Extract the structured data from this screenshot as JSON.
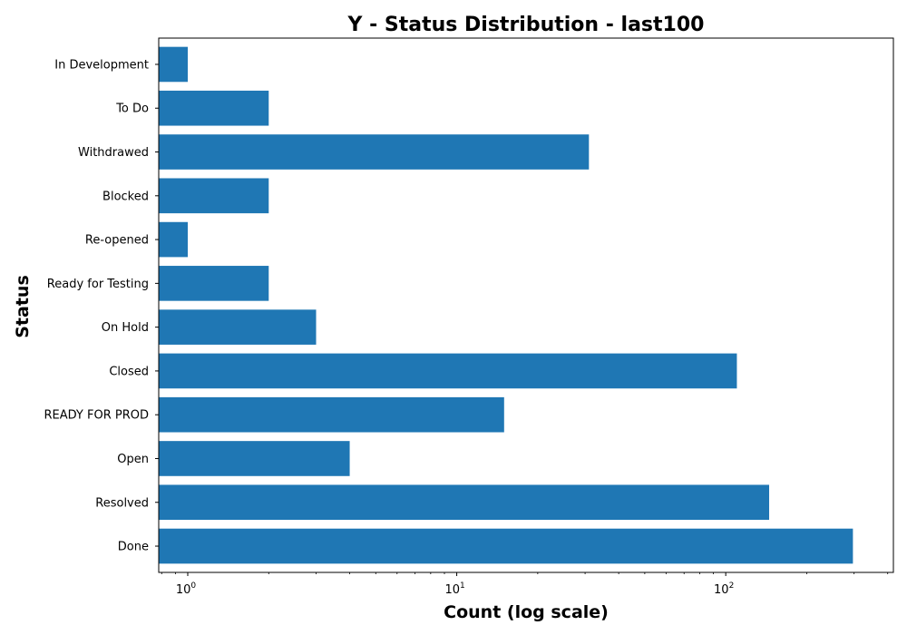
{
  "chart_data": {
    "type": "bar",
    "orientation": "horizontal",
    "title": "Y - Status Distribution - last100",
    "xlabel": "Count (log scale)",
    "ylabel": "Status",
    "x_scale": "log",
    "xlim": [
      0.78,
      420
    ],
    "grid": false,
    "legend": "none",
    "bar_color": "#1f77b4",
    "categories": [
      "Done",
      "Resolved",
      "Open",
      "READY FOR PROD",
      "Closed",
      "On Hold",
      "Ready for Testing",
      "Re-opened",
      "Blocked",
      "Withdrawed",
      "To Do",
      "In Development"
    ],
    "values": [
      297,
      145,
      4,
      15,
      110,
      3,
      2,
      1,
      2,
      31,
      2,
      1
    ],
    "x_ticks": [
      {
        "value": 1,
        "base": "10",
        "exp": "0"
      },
      {
        "value": 10,
        "base": "10",
        "exp": "1"
      },
      {
        "value": 100,
        "base": "10",
        "exp": "2"
      }
    ]
  }
}
